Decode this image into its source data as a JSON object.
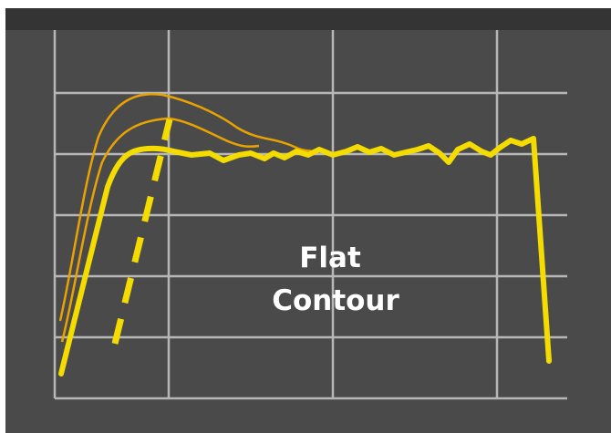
{
  "diagram": {
    "label_line1": "Flat",
    "label_line2": "Contour",
    "colors": {
      "background": "#4b4a4b",
      "top_band": "#353435",
      "grid": "#b7b7b7",
      "main_curve": "#f5dc00",
      "overshoot_curves": "#e9a300",
      "dashed_slope": "#f5dc00",
      "label": "#ffffff"
    },
    "curves": [
      {
        "name": "flat-contour-curve"
      },
      {
        "name": "high-overshoot-curve"
      },
      {
        "name": "medium-overshoot-curve"
      }
    ]
  }
}
